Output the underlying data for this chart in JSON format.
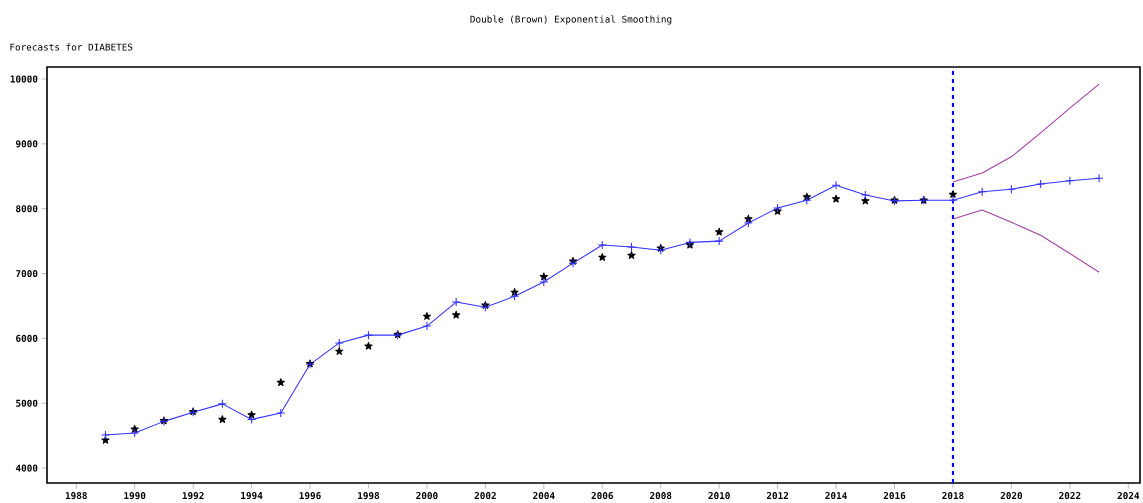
{
  "chart_data": {
    "type": "line",
    "title": "Double (Brown) Exponential Smoothing",
    "ylabel": "Forecasts for DIABETES",
    "xlim": [
      1987,
      2024.4
    ],
    "ylim": [
      3770,
      10185
    ],
    "xticks": [
      1988,
      1990,
      1992,
      1994,
      1996,
      1998,
      2000,
      2002,
      2004,
      2006,
      2008,
      2010,
      2012,
      2014,
      2016,
      2018,
      2020,
      2022,
      2024
    ],
    "yticks": [
      4000,
      5000,
      6000,
      7000,
      8000,
      9000,
      10000
    ],
    "grid": false,
    "series": [
      {
        "type": "scatter",
        "color": "#000000",
        "marker": "star",
        "x": [
          1989,
          1990,
          1991,
          1992,
          1993,
          1994,
          1995,
          1996,
          1997,
          1998,
          1999,
          2000,
          2001,
          2002,
          2003,
          2004,
          2005,
          2006,
          2007,
          2008,
          2009,
          2010,
          2011,
          2012,
          2013,
          2014,
          2015,
          2016,
          2017,
          2018
        ],
        "values": [
          4430,
          4600,
          4730,
          4870,
          4750,
          4820,
          5320,
          5610,
          5800,
          5880,
          6060,
          6340,
          6360,
          6510,
          6710,
          6950,
          7190,
          7250,
          7280,
          7390,
          7440,
          7640,
          7840,
          7960,
          8180,
          8150,
          8120,
          8130,
          8130,
          8220
        ]
      },
      {
        "color": "#3333ff",
        "marker": "cross",
        "line_style": "solid",
        "x": [
          1989,
          1990,
          1991,
          1992,
          1993,
          1994,
          1995,
          1996,
          1997,
          1998,
          1999,
          2000,
          2001,
          2002,
          2003,
          2004,
          2005,
          2006,
          2007,
          2008,
          2009,
          2010,
          2011,
          2012,
          2013,
          2014,
          2015,
          2016,
          2017,
          2018,
          2019,
          2020,
          2021,
          2022,
          2023
        ],
        "values": [
          4510,
          4540,
          4720,
          4860,
          4990,
          4750,
          4850,
          5600,
          5930,
          6050,
          6050,
          6190,
          6560,
          6480,
          6650,
          6870,
          7160,
          7440,
          7410,
          7360,
          7480,
          7500,
          7780,
          8010,
          8130,
          8360,
          8210,
          8120,
          8130,
          8130,
          8260,
          8300,
          8380,
          8430,
          8470
        ]
      },
      {
        "color": "#a040a0",
        "marker": "none",
        "line_style": "solid",
        "x": [
          2018,
          2019,
          2020,
          2021,
          2022,
          2023
        ],
        "values": [
          8410,
          8550,
          8800,
          9170,
          9550,
          9920
        ]
      },
      {
        "color": "#a040a0",
        "marker": "none",
        "line_style": "solid",
        "x": [
          2018,
          2019,
          2020,
          2021,
          2022,
          2023
        ],
        "values": [
          7840,
          7980,
          7790,
          7590,
          7310,
          7020
        ]
      }
    ],
    "ref_lines": [
      {
        "axis": "x",
        "value": 2018,
        "color": "#0000ff",
        "line_style": "dashed"
      }
    ]
  }
}
